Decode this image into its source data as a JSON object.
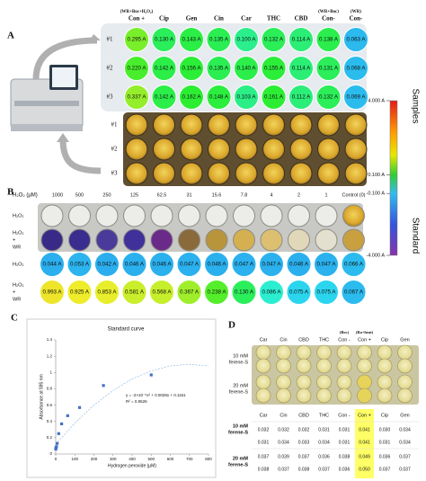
{
  "figure_labels": [
    "A",
    "B",
    "C",
    "D"
  ],
  "panel_a": {
    "columns": [
      {
        "note": "(WR+Boc+H₂O₂)",
        "label": "Con +"
      },
      {
        "label": "Cip"
      },
      {
        "label": "Gen"
      },
      {
        "label": "Cin"
      },
      {
        "label": "Car"
      },
      {
        "label": "THC"
      },
      {
        "label": "CBD"
      },
      {
        "note": "(WR+Boc)",
        "label": "Con-"
      },
      {
        "note": "(WR)",
        "label": "Con-"
      }
    ],
    "rows": [
      {
        "label": "#1",
        "values": [
          0.295,
          0.13,
          0.143,
          0.135,
          0.1,
          0.132,
          0.114,
          0.138,
          0.063
        ],
        "value_labels": [
          "0.295 A",
          "0.130 A",
          "0.143 A",
          "0.135 A",
          "0.100 A",
          "0.132 A",
          "0.114 A",
          "0.138 A",
          "0.063 A"
        ]
      },
      {
        "label": "#2",
        "values": [
          0.22,
          0.142,
          0.156,
          0.135,
          0.14,
          0.155,
          0.114,
          0.131,
          0.068
        ],
        "value_labels": [
          "0.220 A",
          "0.142 A",
          "0.156 A",
          "0.135 A",
          "0.140 A",
          "0.155 A",
          "0.114 A",
          "0.131 A",
          "0.068 A"
        ]
      },
      {
        "label": "#3",
        "values": [
          0.337,
          0.142,
          0.162,
          0.148,
          0.103,
          0.161,
          0.112,
          0.132,
          0.069
        ],
        "value_labels": [
          "0.337 A",
          "0.142 A",
          "0.162 A",
          "0.148 A",
          "0.103 A",
          "0.161 A",
          "0.112 A",
          "0.132 A",
          "0.069 A"
        ]
      }
    ],
    "photo_rows": [
      "#1",
      "#2",
      "#3"
    ],
    "colorbar": {
      "ticks": [
        {
          "value": 4,
          "label": "4.000 A"
        },
        {
          "value": 0.1,
          "label": "0.100 A"
        },
        {
          "value": -0.1,
          "label": "-0.100 A"
        },
        {
          "value": -4,
          "label": "-4.000 A"
        }
      ]
    },
    "side_labels": [
      "Samples",
      "Standard"
    ]
  },
  "panel_b": {
    "axis_label": "H₂O₂ (μM)",
    "columns": [
      "1000",
      "500",
      "250",
      "125",
      "62.5",
      "31",
      "15.6",
      "7.8",
      "4",
      "2",
      "1",
      "Control (0)"
    ],
    "photo_row_labels": [
      [
        "H₂O₂"
      ],
      [
        "H₂O₂",
        "+",
        "WR"
      ]
    ],
    "rows": [
      {
        "label": [
          "H₂O₂"
        ],
        "values": [
          0.044,
          0.053,
          0.042,
          0.046,
          0.046,
          0.047,
          0.046,
          0.047,
          0.047,
          0.046,
          0.047,
          0.066
        ],
        "value_labels": [
          "0.044 A",
          "0.053 A",
          "0.042 A",
          "0.046 A",
          "0.046 A",
          "0.047 A",
          "0.046 A",
          "0.047 A",
          "0.047 A",
          "0.046 A",
          "0.047 A",
          "0.066 A"
        ]
      },
      {
        "label": [
          "H₂O₂",
          "+",
          "WR"
        ],
        "values": [
          0.993,
          0.925,
          0.853,
          0.581,
          0.568,
          0.367,
          0.238,
          0.13,
          0.086,
          0.075,
          0.075,
          0.067
        ],
        "value_labels": [
          "0.993 A",
          "0.925 A",
          "0.853 A",
          "0.581 A",
          "0.568 A",
          "0.367 A",
          "0.238 A",
          "0.130 A",
          "0.086 A",
          "0.075 A",
          "0.075 A",
          "0.067 A"
        ]
      }
    ]
  },
  "chart_data": {
    "type": "scatter",
    "title": "Standard curve",
    "x_label": "Hydrogen peroxide (μM)",
    "y_label": "Absorbance at 595 nm",
    "annotations": [
      "y = -2×10⁻⁶x² + 0.0028x + 0.1161",
      "R² = 0.9526"
    ],
    "xlim": [
      0,
      800
    ],
    "xticks": [
      0,
      100,
      200,
      300,
      400,
      500,
      600,
      700,
      800
    ],
    "ylim": [
      0,
      1.4
    ],
    "yticks": [
      0,
      0.2,
      0.4,
      0.6,
      0.8,
      1,
      1.2,
      1.4
    ],
    "series": [
      {
        "type": "scatter",
        "color": "#4472c4",
        "x": [
          0,
          1,
          2,
          4,
          7.8,
          15.6,
          31,
          62.5,
          125,
          250,
          500
        ],
        "values": [
          0.06,
          0.07,
          0.08,
          0.09,
          0.13,
          0.25,
          0.37,
          0.47,
          0.57,
          0.84,
          0.97
        ]
      },
      {
        "type": "line",
        "color": "#9dc3e6",
        "x": [
          0,
          100,
          200,
          300,
          400,
          500,
          600,
          700,
          800
        ],
        "values": [
          0.12,
          0.38,
          0.6,
          0.78,
          0.92,
          1.02,
          1.08,
          1.1,
          1.08
        ]
      }
    ]
  },
  "panel_d": {
    "photo_columns": [
      {
        "label": "Car"
      },
      {
        "label": "Cin"
      },
      {
        "label": "CBD"
      },
      {
        "label": "THC"
      },
      {
        "note": "(Boc)",
        "label": "Con -"
      },
      {
        "note": "(Ra+heat)",
        "label": "Con +"
      },
      {
        "label": "Cip"
      },
      {
        "label": "Gen"
      }
    ],
    "photo_row_labels": [
      [
        "10 mM",
        "ferene-S"
      ],
      [
        "20 mM",
        "ferene-S"
      ]
    ],
    "table": {
      "header": [
        "Car",
        "Cin",
        "CBD",
        "THC",
        "Con -",
        "Con +",
        "Cip",
        "Gen"
      ],
      "groups": [
        {
          "label": [
            "10 mM",
            "ferene-S"
          ],
          "rows": [
            [
              "0.032",
              "0.032",
              "0.032",
              "0.031",
              "0.031",
              "0.041",
              "0.030",
              "0.034"
            ],
            [
              "0.031",
              "0.034",
              "0.033",
              "0.034",
              "0.031",
              "0.041",
              "0.031",
              "0.034"
            ]
          ]
        },
        {
          "label": [
            "20 mM",
            "ferene-S"
          ],
          "rows": [
            [
              "0.037",
              "0.039",
              "0.037",
              "0.036",
              "0.038",
              "0.049",
              "0.036",
              "0.037"
            ],
            [
              "0.038",
              "0.037",
              "0.038",
              "0.037",
              "0.036",
              "0.050",
              "0.037",
              "0.037"
            ]
          ]
        }
      ]
    }
  }
}
